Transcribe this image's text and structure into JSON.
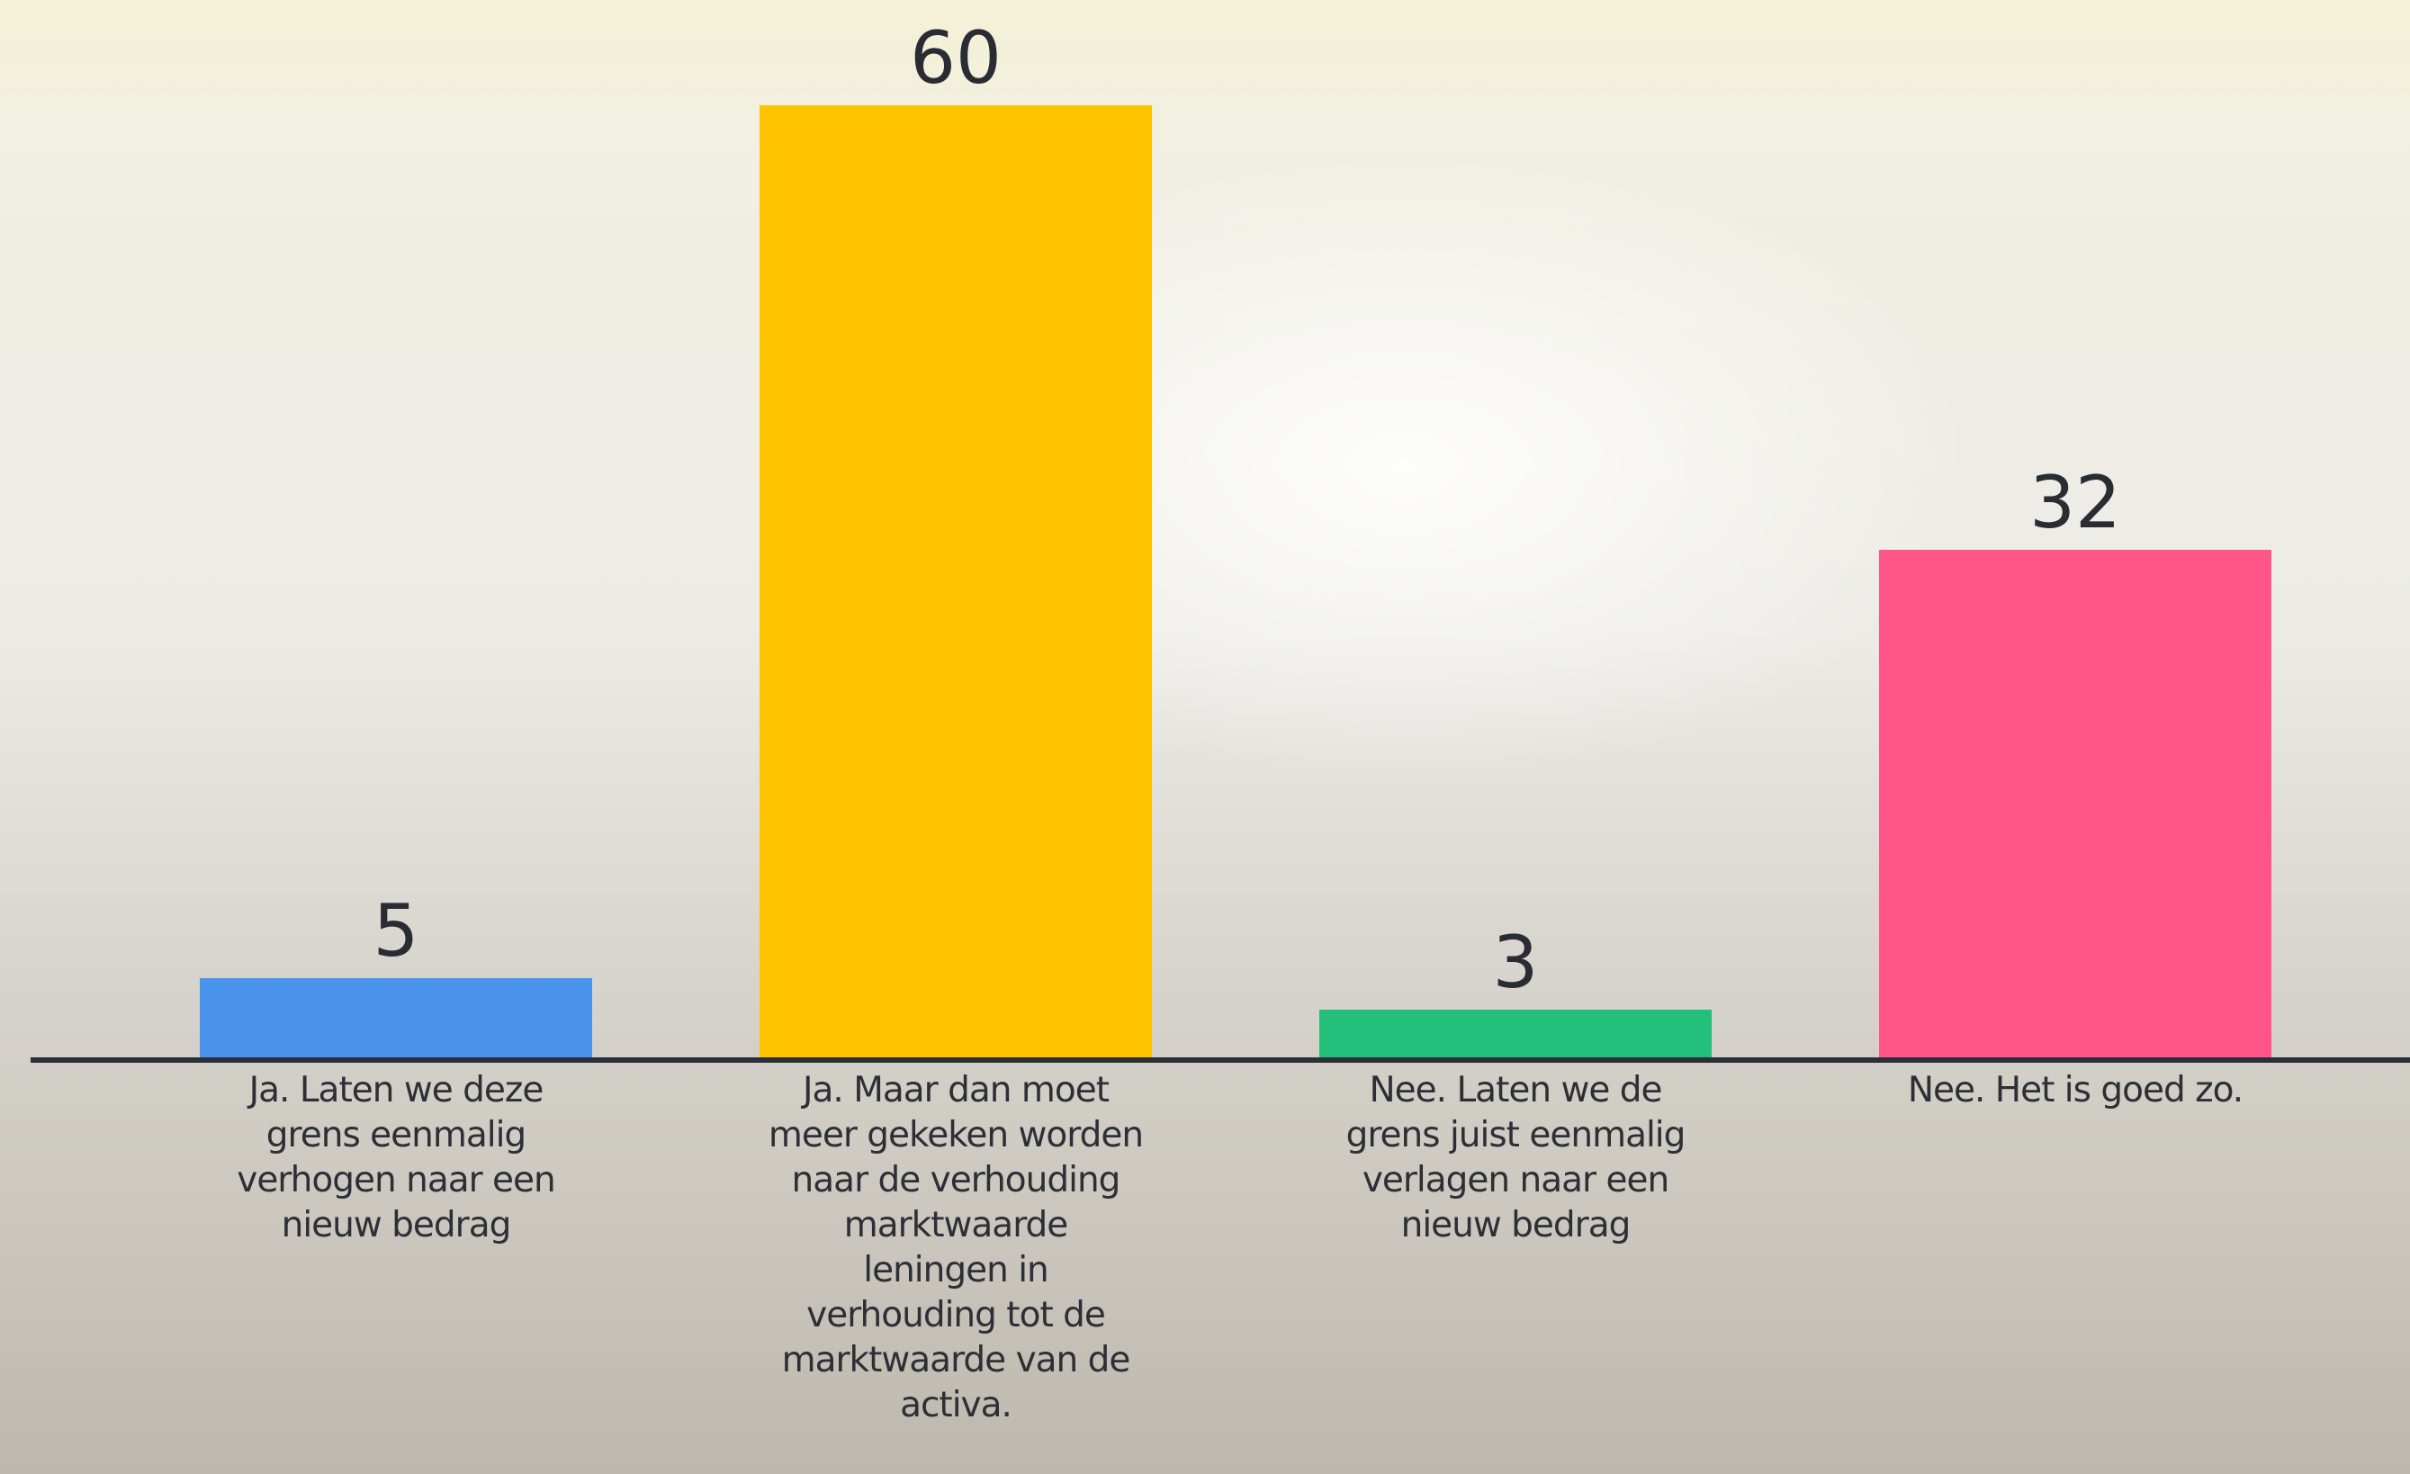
{
  "chart_data": {
    "type": "bar",
    "categories": [
      "Ja. Laten we deze grens eenmalig verhogen naar een nieuw bedrag",
      "Ja. Maar dan moet meer gekeken worden naar de verhouding marktwaarde leningen in verhouding tot de marktwaarde van de activa.",
      "Nee. Laten we de grens juist eenmalig verlagen naar een nieuw bedrag",
      "Nee. Het is goed zo."
    ],
    "values": [
      5,
      60,
      3,
      32
    ],
    "colors": [
      "#4a93ec",
      "#ffc300",
      "#22c07a",
      "#ff5589"
    ]
  }
}
